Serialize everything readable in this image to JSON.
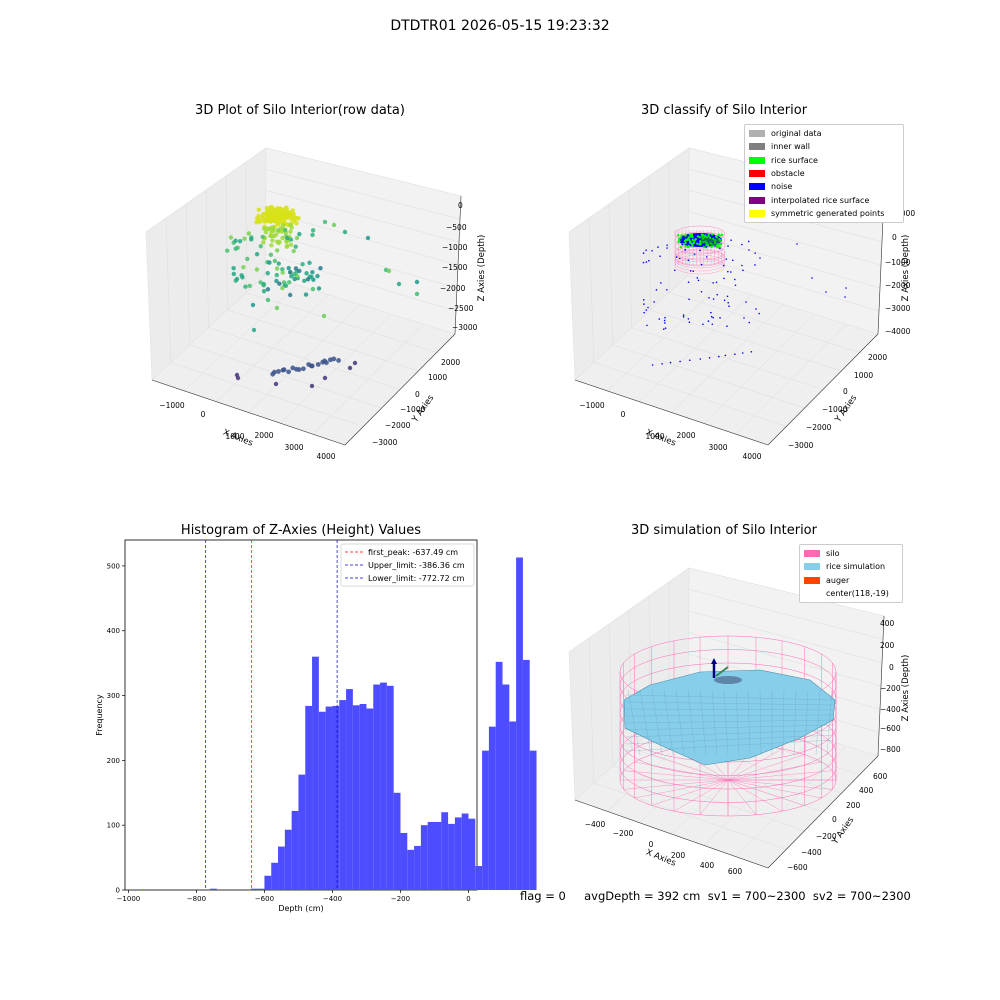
{
  "suptitle": "DTDTR01 2026-05-15 19:23:32",
  "colors": {
    "original": "#b0b0b0",
    "inner_wall": "#808080",
    "rice_surface": "#00ff00",
    "obstacle": "#ff0000",
    "noise": "#0000ff",
    "interp": "#800080",
    "symmetric": "#ffff00",
    "silo": "#ff69b4",
    "rice_sim": "#87ceeb",
    "auger": "#ff4500",
    "hist_bar": "#4d4dff"
  },
  "panel1": {
    "title": "3D Plot of Silo Interior(row data)",
    "xlabel": "X Axies",
    "ylabel": "Y Axies",
    "zlabel": "Z Axies (Depth)",
    "xticks": [
      "−1000",
      "0",
      "1000",
      "2000",
      "3000",
      "4000"
    ],
    "yticks": [
      "2000",
      "1000",
      "0",
      "−1000",
      "−2000",
      "−3000"
    ],
    "zticks": [
      "0",
      "−500",
      "−1000",
      "−1500",
      "−2000",
      "−2500",
      "−3000"
    ]
  },
  "panel2": {
    "title": "3D classify of Silo Interior",
    "xlabel": "X Axies",
    "ylabel": "Y Axies",
    "zlabel": "Z Axies (Depth)",
    "xticks": [
      "−1000",
      "0",
      "1000",
      "2000",
      "3000",
      "4000"
    ],
    "yticks": [
      "2000",
      "1000",
      "0",
      "−1000",
      "−2000",
      "−3000"
    ],
    "zticks": [
      "1000",
      "0",
      "−1000",
      "−2000",
      "−3000",
      "−4000"
    ],
    "legend": [
      {
        "label": "original data",
        "color": "#b0b0b0"
      },
      {
        "label": "inner wall",
        "color": "#808080"
      },
      {
        "label": "rice surface",
        "color": "#00ff00"
      },
      {
        "label": "obstacle",
        "color": "#ff0000"
      },
      {
        "label": "noise",
        "color": "#0000ff"
      },
      {
        "label": "interpolated rice surface",
        "color": "#800080"
      },
      {
        "label": "symmetric generated points",
        "color": "#ffff00"
      }
    ]
  },
  "panel4": {
    "title": "3D simulation of Silo Interior",
    "xlabel": "X Axies",
    "ylabel": "Y Axies",
    "zlabel": "Z Axies (Depth)",
    "xticks": [
      "−400",
      "−200",
      "0",
      "200",
      "400",
      "600"
    ],
    "yticks": [
      "600",
      "400",
      "200",
      "0",
      "−200",
      "−400",
      "−600"
    ],
    "zticks": [
      "400",
      "200",
      "0",
      "−200",
      "−400",
      "−600",
      "−800"
    ],
    "legend": [
      {
        "label": "silo",
        "color": "#ff69b4"
      },
      {
        "label": "rice simulation",
        "color": "#87ceeb"
      },
      {
        "label": "auger",
        "color": "#ff4500"
      },
      {
        "label": "center(118,-19)",
        "color": ""
      }
    ]
  },
  "footer": "flag = 0     avgDepth = 392 cm  sv1 = 700~2300  sv2 = 700~2300",
  "chart_data": [
    {
      "type": "histogram",
      "title": "Histogram of Z-Axies (Height) Values",
      "xlabel": "Depth (cm)",
      "ylabel": "Frequency",
      "xlim": [
        -1010,
        25
      ],
      "ylim": [
        0,
        540
      ],
      "xticks": [
        -1000,
        -800,
        -600,
        -400,
        -200,
        0
      ],
      "yticks": [
        0,
        100,
        200,
        300,
        400,
        500
      ],
      "bin_start": -980,
      "bin_width": 20,
      "values": [
        1,
        0,
        0,
        0,
        0,
        0,
        0,
        0,
        0,
        0,
        0,
        2,
        0,
        0,
        0,
        0,
        0,
        2,
        2,
        22,
        42,
        67,
        93,
        122,
        178,
        284,
        360,
        275,
        283,
        284,
        293,
        310,
        285,
        287,
        280,
        317,
        320,
        315,
        150,
        88,
        62,
        68,
        100,
        105,
        105,
        120,
        102,
        112,
        118,
        110,
        37,
        215,
        252,
        352,
        317,
        260,
        513,
        355,
        215
      ],
      "vlines": [
        {
          "label": "first_peak: -637.49 cm",
          "x": -637.49,
          "color": "#ff0000"
        },
        {
          "label": "Upper_limit: -386.36 cm",
          "x": -386.36,
          "color": "#0000cc"
        },
        {
          "label": "Lower_limit: -772.72 cm",
          "x": -772.72,
          "color": "#0000cc"
        }
      ],
      "legend_placement": "top-right"
    }
  ]
}
